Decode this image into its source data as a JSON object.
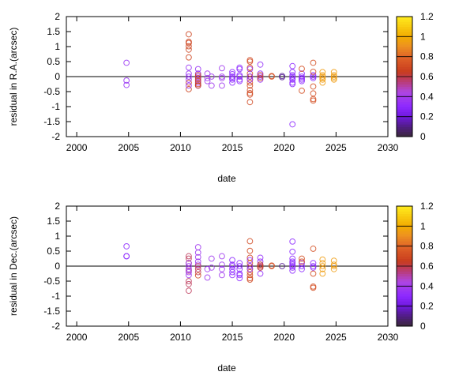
{
  "chart_data": [
    {
      "type": "scatter",
      "xlabel": "date",
      "ylabel": "residual in R.A.(arcsec)",
      "xlim": [
        1999,
        2030
      ],
      "ylim": [
        -2,
        2
      ],
      "xticks": [
        2000,
        2005,
        2010,
        2015,
        2020,
        2025,
        2030
      ],
      "yticks": [
        2,
        1.5,
        1,
        0.5,
        0,
        -0.5,
        -1,
        -1.5,
        -2
      ],
      "zero_line": true,
      "colorbar": {
        "range": [
          0,
          1.2
        ],
        "ticks": [
          0,
          0.2,
          0.4,
          0.6,
          0.8,
          1,
          1.2
        ]
      },
      "groups": [
        {
          "x": 2004.8,
          "c": 0.35,
          "y": [
            0.46,
            -0.13,
            -0.28
          ]
        },
        {
          "x": 2010.8,
          "c": 0.68,
          "y": [
            1.41,
            1.16,
            1.12,
            1.01,
            0.9,
            0.64,
            -0.2,
            -0.42
          ]
        },
        {
          "x": 2010.8,
          "c": 0.35,
          "y": [
            0.3,
            0.1,
            0.0,
            -0.1,
            -0.3
          ]
        },
        {
          "x": 2011.7,
          "c": 0.35,
          "y": [
            0.25,
            0.1,
            0.0,
            -0.1,
            -0.2,
            -0.3
          ]
        },
        {
          "x": 2011.7,
          "c": 0.66,
          "y": [
            0.05,
            -0.05,
            -0.15,
            -0.25,
            -0.3
          ]
        },
        {
          "x": 2012.6,
          "c": 0.38,
          "y": [
            0.1,
            -0.05,
            -0.15
          ]
        },
        {
          "x": 2013.0,
          "c": 0.38,
          "y": [
            0.0,
            -0.3
          ]
        },
        {
          "x": 2014.0,
          "c": 0.38,
          "y": [
            0.28,
            0.0,
            -0.05,
            -0.3
          ]
        },
        {
          "x": 2015.0,
          "c": 0.3,
          "y": [
            0.15,
            0.08,
            0.0,
            -0.05,
            -0.1,
            -0.2
          ]
        },
        {
          "x": 2015.7,
          "c": 0.3,
          "y": [
            0.3,
            0.25,
            0.05,
            0.0,
            -0.1,
            -0.15
          ]
        },
        {
          "x": 2016.7,
          "c": 0.7,
          "y": [
            0.55,
            0.5,
            0.3,
            0.1,
            0.0,
            -0.1,
            -0.2,
            -0.3,
            -0.45,
            -0.55,
            -0.6,
            -0.85
          ]
        },
        {
          "x": 2016.7,
          "c": 0.35,
          "y": [
            0.25,
            0.0,
            -0.1
          ]
        },
        {
          "x": 2017.7,
          "c": 0.33,
          "y": [
            0.4,
            0.1,
            0.0,
            -0.1
          ]
        },
        {
          "x": 2017.7,
          "c": 0.68,
          "y": [
            0.05,
            -0.05
          ]
        },
        {
          "x": 2018.8,
          "c": 0.72,
          "y": [
            0.02,
            0.0
          ]
        },
        {
          "x": 2019.8,
          "c": 0.12,
          "y": [
            0.02,
            -0.02
          ]
        },
        {
          "x": 2020.8,
          "c": 0.3,
          "y": [
            0.35,
            0.15,
            0.05,
            0.0,
            -0.05,
            -0.1,
            -0.2,
            -0.25,
            -1.59
          ]
        },
        {
          "x": 2021.7,
          "c": 0.3,
          "y": [
            0.1,
            0.0,
            -0.05,
            -0.1,
            -0.15
          ]
        },
        {
          "x": 2021.7,
          "c": 0.72,
          "y": [
            0.26,
            -0.47
          ]
        },
        {
          "x": 2022.8,
          "c": 0.3,
          "y": [
            0.05,
            0.0,
            -0.05
          ]
        },
        {
          "x": 2022.8,
          "c": 0.72,
          "y": [
            0.46,
            0.16,
            -0.33,
            -0.56,
            -0.75,
            -0.8
          ]
        },
        {
          "x": 2023.7,
          "c": 0.95,
          "y": [
            0.15,
            0.05,
            0.0,
            -0.05,
            -0.1,
            -0.2
          ]
        },
        {
          "x": 2024.8,
          "c": 0.95,
          "y": [
            0.15,
            0.05,
            0.0,
            -0.05,
            -0.1
          ]
        }
      ]
    },
    {
      "type": "scatter",
      "xlabel": "date",
      "ylabel": "residual in Dec.(arcsec)",
      "xlim": [
        1999,
        2030
      ],
      "ylim": [
        -2,
        2
      ],
      "xticks": [
        2000,
        2005,
        2010,
        2015,
        2020,
        2025,
        2030
      ],
      "yticks": [
        2,
        1.5,
        1,
        0.5,
        0,
        -0.5,
        -1,
        -1.5,
        -2
      ],
      "zero_line": true,
      "colorbar": {
        "range": [
          0,
          1.2
        ],
        "ticks": [
          0,
          0.2,
          0.4,
          0.6,
          0.8,
          1,
          1.2
        ]
      },
      "groups": [
        {
          "x": 2004.8,
          "c": 0.3,
          "y": [
            0.66,
            0.33,
            0.33
          ]
        },
        {
          "x": 2010.8,
          "c": 0.58,
          "y": [
            0.33,
            0.25,
            0.1,
            -0.15,
            -0.5,
            -0.6,
            -0.82
          ]
        },
        {
          "x": 2010.8,
          "c": 0.38,
          "y": [
            0.1,
            0.0,
            -0.1,
            -0.2,
            -0.3
          ]
        },
        {
          "x": 2011.7,
          "c": 0.38,
          "y": [
            0.63,
            0.45,
            0.3,
            0.15,
            0.05
          ]
        },
        {
          "x": 2011.7,
          "c": 0.58,
          "y": [
            0.0,
            -0.1,
            -0.2
          ]
        },
        {
          "x": 2011.7,
          "c": 0.7,
          "y": [
            -0.31
          ]
        },
        {
          "x": 2012.6,
          "c": 0.38,
          "y": [
            -0.1,
            -0.38
          ]
        },
        {
          "x": 2013.0,
          "c": 0.38,
          "y": [
            0.25,
            -0.05
          ]
        },
        {
          "x": 2014.0,
          "c": 0.38,
          "y": [
            0.33,
            0.05,
            -0.1,
            -0.3
          ]
        },
        {
          "x": 2015.0,
          "c": 0.3,
          "y": [
            0.2,
            0.05,
            0.0,
            -0.1,
            -0.2,
            -0.3
          ]
        },
        {
          "x": 2015.7,
          "c": 0.3,
          "y": [
            0.1,
            0.0,
            -0.1,
            -0.25,
            -0.3,
            -0.4
          ]
        },
        {
          "x": 2016.7,
          "c": 0.7,
          "y": [
            0.83,
            0.51,
            0.28,
            0.1,
            0.0,
            -0.1,
            -0.2,
            -0.3,
            -0.4,
            -0.45
          ]
        },
        {
          "x": 2016.7,
          "c": 0.35,
          "y": [
            0.2,
            0.0,
            -0.1
          ]
        },
        {
          "x": 2017.7,
          "c": 0.33,
          "y": [
            0.28,
            0.15,
            0.05,
            -0.05,
            -0.25
          ]
        },
        {
          "x": 2017.7,
          "c": 0.66,
          "y": [
            0.05,
            0.0,
            -0.05
          ]
        },
        {
          "x": 2018.8,
          "c": 0.72,
          "y": [
            0.02,
            0.0
          ]
        },
        {
          "x": 2019.8,
          "c": 0.12,
          "y": [
            0.0
          ]
        },
        {
          "x": 2020.8,
          "c": 0.3,
          "y": [
            0.82,
            0.48,
            0.25,
            0.15,
            0.1,
            0.05,
            0.0,
            -0.05,
            -0.15
          ]
        },
        {
          "x": 2021.7,
          "c": 0.3,
          "y": [
            0.1,
            0.0,
            -0.1
          ]
        },
        {
          "x": 2021.7,
          "c": 0.72,
          "y": [
            0.25,
            0.15
          ]
        },
        {
          "x": 2022.8,
          "c": 0.3,
          "y": [
            0.1,
            0.0,
            -0.05
          ]
        },
        {
          "x": 2022.8,
          "c": 0.72,
          "y": [
            0.58,
            -0.25,
            -0.68,
            -0.72
          ]
        },
        {
          "x": 2023.7,
          "c": 0.95,
          "y": [
            0.22,
            0.1,
            0.0,
            -0.1,
            -0.25
          ]
        },
        {
          "x": 2024.8,
          "c": 0.95,
          "y": [
            0.18,
            0.05,
            0.0,
            -0.1
          ]
        }
      ]
    }
  ]
}
